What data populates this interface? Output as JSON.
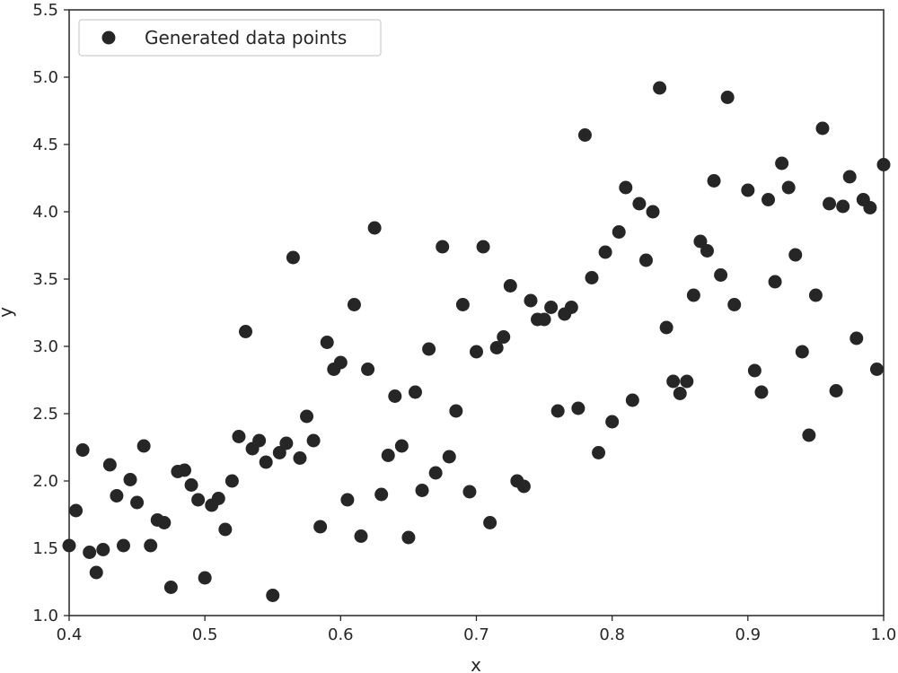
{
  "chart_data": {
    "type": "scatter",
    "xlabel": "x",
    "ylabel": "y",
    "xlim": [
      0.4,
      1.0
    ],
    "ylim": [
      1.0,
      5.5
    ],
    "xticks": [
      "0.4",
      "0.5",
      "0.6",
      "0.7",
      "0.8",
      "0.9",
      "1.0"
    ],
    "yticks": [
      "1.0",
      "1.5",
      "2.0",
      "2.5",
      "3.0",
      "3.5",
      "4.0",
      "4.5",
      "5.0",
      "5.5"
    ],
    "grid": false,
    "legend_position": "top-left",
    "marker_color": "#262626",
    "series": [
      {
        "name": "Generated data points",
        "x": [
          0.4,
          0.405,
          0.41,
          0.415,
          0.42,
          0.425,
          0.43,
          0.435,
          0.44,
          0.445,
          0.45,
          0.455,
          0.46,
          0.465,
          0.47,
          0.475,
          0.48,
          0.485,
          0.49,
          0.495,
          0.5,
          0.505,
          0.51,
          0.515,
          0.52,
          0.525,
          0.53,
          0.535,
          0.54,
          0.545,
          0.55,
          0.555,
          0.56,
          0.565,
          0.57,
          0.575,
          0.58,
          0.585,
          0.59,
          0.595,
          0.6,
          0.605,
          0.61,
          0.615,
          0.62,
          0.625,
          0.63,
          0.635,
          0.64,
          0.645,
          0.65,
          0.655,
          0.66,
          0.665,
          0.67,
          0.675,
          0.68,
          0.685,
          0.69,
          0.695,
          0.7,
          0.705,
          0.71,
          0.715,
          0.72,
          0.725,
          0.73,
          0.735,
          0.74,
          0.745,
          0.75,
          0.755,
          0.76,
          0.765,
          0.77,
          0.775,
          0.78,
          0.785,
          0.79,
          0.795,
          0.8,
          0.805,
          0.81,
          0.815,
          0.82,
          0.825,
          0.83,
          0.835,
          0.84,
          0.845,
          0.85,
          0.855,
          0.86,
          0.865,
          0.87,
          0.875,
          0.88,
          0.885,
          0.89,
          0.9,
          0.905,
          0.91,
          0.915,
          0.92,
          0.925,
          0.93,
          0.935,
          0.94,
          0.945,
          0.95,
          0.955,
          0.96,
          0.965,
          0.97,
          0.975,
          0.98,
          0.985,
          0.99,
          0.995,
          1.0
        ],
        "y": [
          1.52,
          1.78,
          2.23,
          1.47,
          1.32,
          1.49,
          2.12,
          1.89,
          1.52,
          2.01,
          1.84,
          2.26,
          1.52,
          1.71,
          1.69,
          1.21,
          2.07,
          2.08,
          1.97,
          1.86,
          1.28,
          1.82,
          1.87,
          1.64,
          2.0,
          2.33,
          3.11,
          2.24,
          2.3,
          2.14,
          1.15,
          2.21,
          2.28,
          3.66,
          2.17,
          2.48,
          2.3,
          1.66,
          3.03,
          2.83,
          2.88,
          1.86,
          3.31,
          1.59,
          2.83,
          3.88,
          1.9,
          2.19,
          2.63,
          2.26,
          1.58,
          2.66,
          1.93,
          2.98,
          2.06,
          3.74,
          2.18,
          2.52,
          3.31,
          1.92,
          2.96,
          3.74,
          1.69,
          2.99,
          3.07,
          3.45,
          2.0,
          1.96,
          3.34,
          3.2,
          3.2,
          3.29,
          2.52,
          3.24,
          3.29,
          2.54,
          4.57,
          3.51,
          2.21,
          3.7,
          2.44,
          3.85,
          4.18,
          2.6,
          4.06,
          3.64,
          4.0,
          4.92,
          3.14,
          2.74,
          2.65,
          2.74,
          3.38,
          3.78,
          3.71,
          4.23,
          3.53,
          4.85,
          3.31,
          4.16,
          2.82,
          2.66,
          4.09,
          3.48,
          4.36,
          4.18,
          3.68,
          2.96,
          2.34,
          3.38,
          4.62,
          4.06,
          2.67,
          4.04,
          4.26,
          3.06,
          4.09,
          4.03,
          2.83,
          4.35
        ]
      }
    ]
  }
}
